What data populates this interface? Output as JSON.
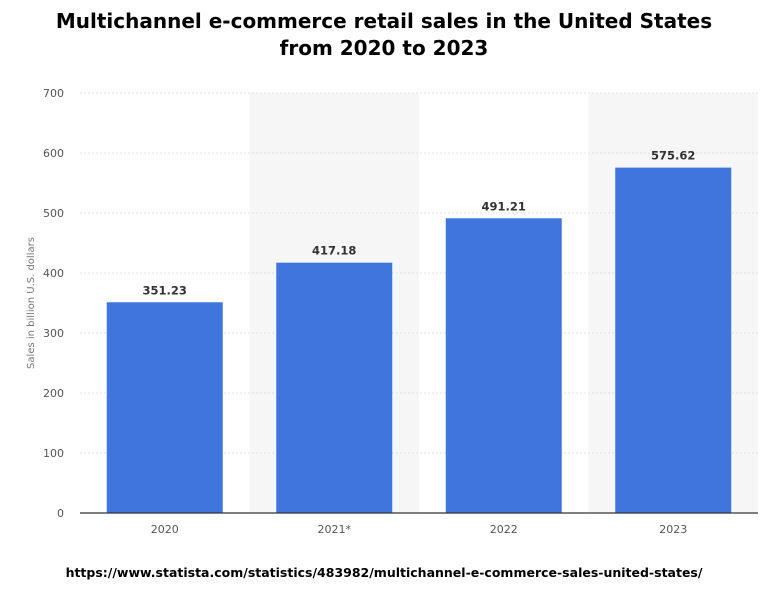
{
  "title_line1": "Multichannel e-commerce retail sales in the United States",
  "title_line2": "from 2020 to 2023",
  "source_url": "https://www.statista.com/statistics/483982/multichannel-e-commerce-sales-united-states/",
  "chart_data": {
    "type": "bar",
    "categories": [
      "2020",
      "2021*",
      "2022",
      "2023"
    ],
    "values": [
      351.23,
      417.18,
      491.21,
      575.62
    ],
    "value_labels": [
      "351.23",
      "417.18",
      "491.21",
      "575.62"
    ],
    "ylabel": "Sales in billion U.S. dollars",
    "ylim": [
      0,
      700
    ],
    "yticks": [
      0,
      100,
      200,
      300,
      400,
      500,
      600,
      700
    ],
    "grid": true,
    "alternating_column_shading": true,
    "bar_color": "#3f75dd",
    "shade_color": "#f6f6f6",
    "grid_color": "#e2e2e2"
  }
}
